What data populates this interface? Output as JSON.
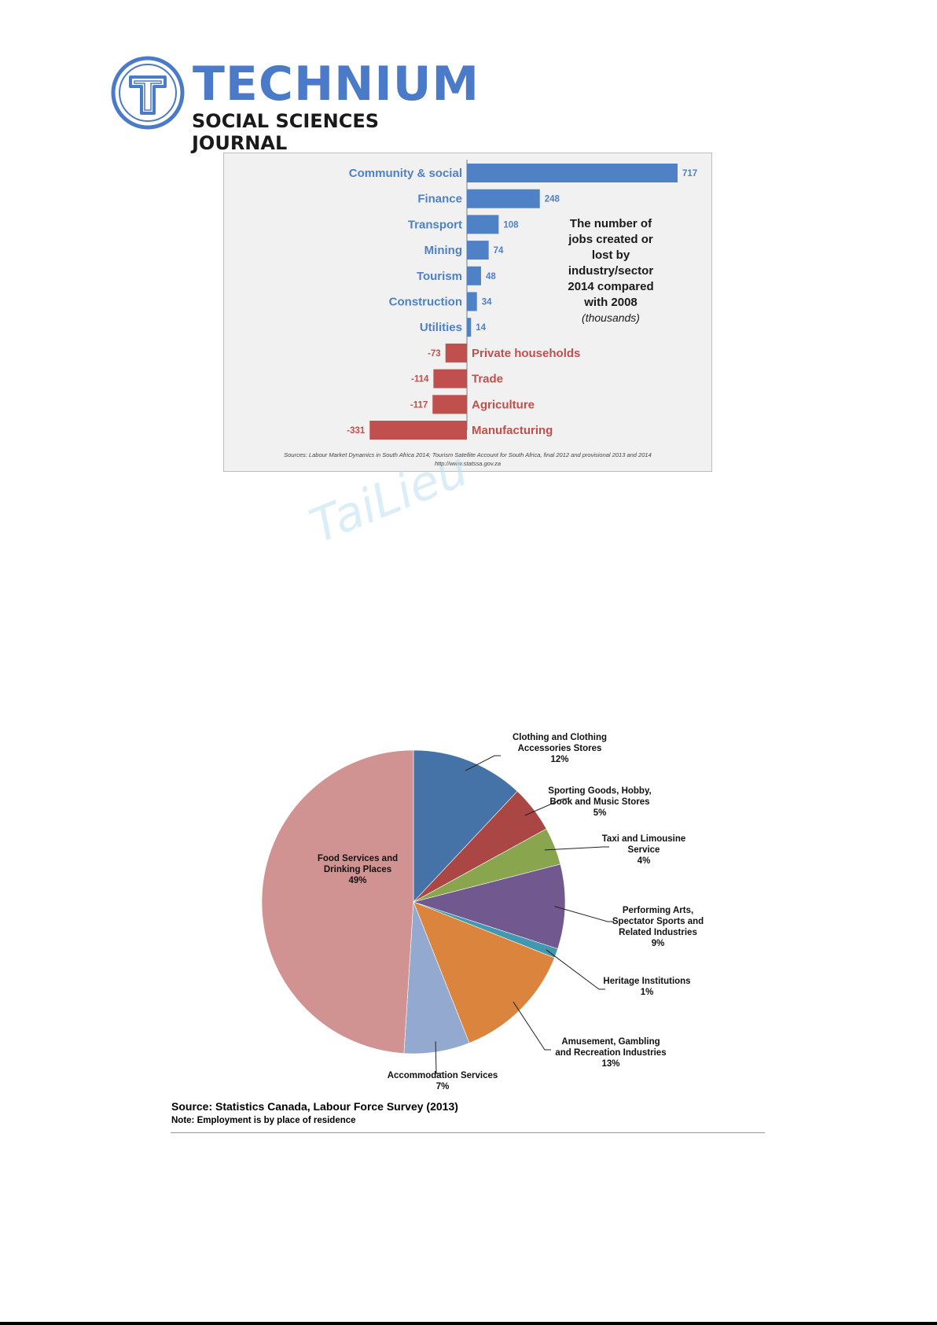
{
  "header": {
    "logo_title": "TECHNIUM",
    "logo_subtitle": "SOCIAL SCIENCES JOURNAL",
    "logo_letter": "T",
    "brand_color": "#4a7ac8"
  },
  "watermark": "TaiLieu",
  "chart_data": [
    {
      "type": "bar",
      "orientation": "horizontal",
      "categories": [
        "Community & social",
        "Finance",
        "Transport",
        "Mining",
        "Tourism",
        "Construction",
        "Utilities",
        "Private households",
        "Trade",
        "Agriculture",
        "Manufacturing"
      ],
      "value_labels": [
        "717",
        "248",
        "108",
        "74",
        "48",
        "34",
        "14",
        "-73",
        "-114",
        "-117",
        "-331"
      ],
      "values": [
        717,
        248,
        108,
        74,
        48,
        34,
        14,
        -73,
        -114,
        -117,
        -331
      ],
      "xlim": [
        -331,
        717
      ],
      "colors": {
        "positive": "#4f81c5",
        "negative": "#c0504d"
      },
      "title_lines": [
        "The number of",
        "jobs created or",
        "lost by",
        "industry/sector",
        "2014 compared",
        "with 2008"
      ],
      "units": "(thousands)",
      "source_lines": [
        "Sources: Labour Market Dynamics in South Africa 2014; Tourism Satellite Account for South Africa, final 2012 and provisional 2013 and 2014",
        "http://www.statssa.gov.za"
      ],
      "grid": false,
      "legend": "none"
    },
    {
      "type": "pie",
      "slices": [
        {
          "label_lines": [
            "Clothing and Clothing",
            "Accessories Stores"
          ],
          "pct_label": "12%",
          "value": 12,
          "color": "#4572a7"
        },
        {
          "label_lines": [
            "Sporting Goods, Hobby,",
            "Book and Music Stores"
          ],
          "pct_label": "5%",
          "value": 5,
          "color": "#aa4643"
        },
        {
          "label_lines": [
            "Taxi and Limousine",
            "Service"
          ],
          "pct_label": "4%",
          "value": 4,
          "color": "#89a54e"
        },
        {
          "label_lines": [
            "Performing Arts,",
            "Spectator Sports and",
            "Related Industries"
          ],
          "pct_label": "9%",
          "value": 9,
          "color": "#71588f"
        },
        {
          "label_lines": [
            "Heritage Institutions"
          ],
          "pct_label": "1%",
          "value": 1,
          "color": "#4198af"
        },
        {
          "label_lines": [
            "Amusement, Gambling",
            "and Recreation Industries"
          ],
          "pct_label": "13%",
          "value": 13,
          "color": "#db843d"
        },
        {
          "label_lines": [
            "Accommodation Services"
          ],
          "pct_label": "7%",
          "value": 7,
          "color": "#93a9cf"
        },
        {
          "label_lines": [
            "Food Services and",
            "Drinking Places"
          ],
          "pct_label": "49%",
          "value": 49,
          "color": "#d19392"
        }
      ],
      "source": "Source: Statistics Canada, Labour Force Survey (2013)",
      "note": "Note: Employment is by place of residence",
      "legend": "none"
    }
  ]
}
